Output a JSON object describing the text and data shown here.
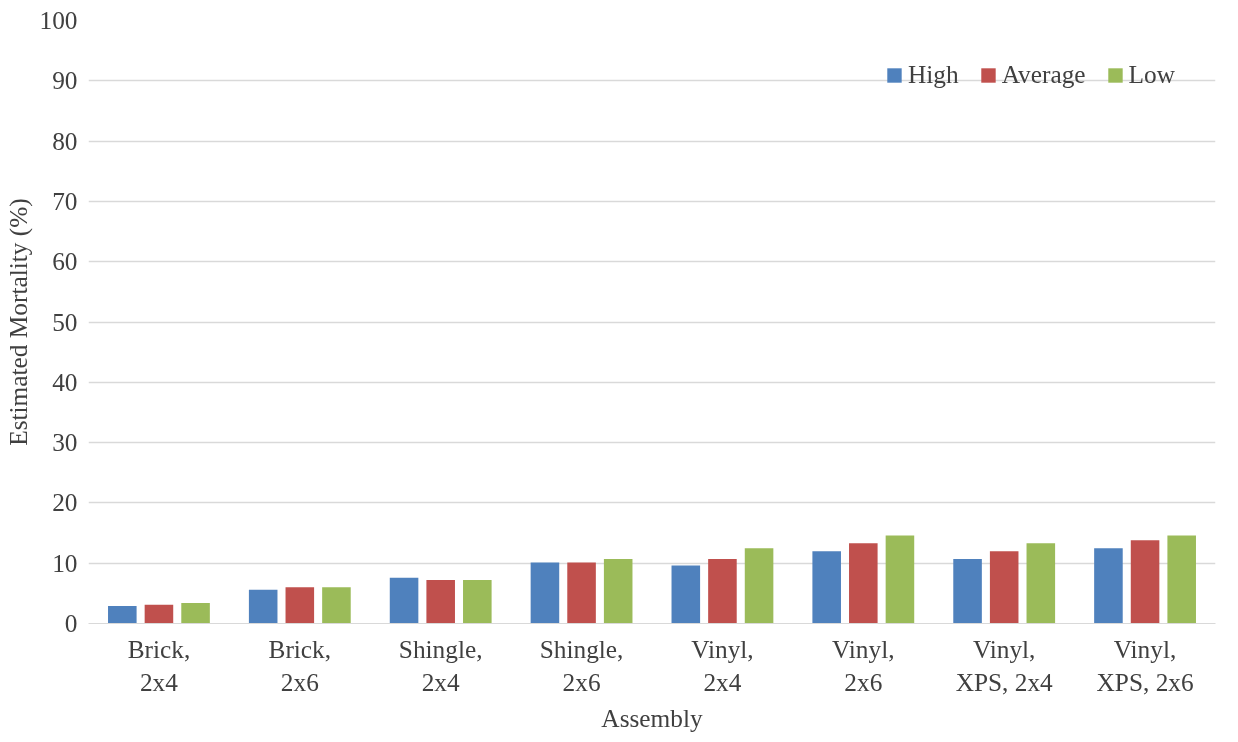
{
  "chart_data": {
    "type": "bar",
    "xlabel": "Assembly",
    "ylabel": "Estimated Mortality (%)",
    "categories": [
      "Brick,\n2x4",
      "Brick,\n2x6",
      "Shingle,\n2x4",
      "Shingle,\n2x6",
      "Vinyl,\n2x4",
      "Vinyl,\n2x6",
      "Vinyl,\nXPS, 2x4",
      "Vinyl,\nXPS, 2x6"
    ],
    "series": [
      {
        "name": "High",
        "color": "#4f81bd",
        "values": [
          2.9,
          5.6,
          7.6,
          10.1,
          9.6,
          12.0,
          10.7,
          12.5
        ]
      },
      {
        "name": "Average",
        "color": "#c0504d",
        "values": [
          3.1,
          6.0,
          7.2,
          10.1,
          10.7,
          13.3,
          12.0,
          13.8
        ]
      },
      {
        "name": "Low",
        "color": "#9bbb59",
        "values": [
          3.4,
          6.0,
          7.2,
          10.7,
          12.5,
          14.6,
          13.3,
          14.6
        ]
      }
    ],
    "ylim": [
      0,
      100
    ],
    "yticks": [
      0,
      10,
      20,
      30,
      40,
      50,
      60,
      70,
      80,
      90,
      100
    ],
    "grid": "y",
    "legend": "top right"
  }
}
